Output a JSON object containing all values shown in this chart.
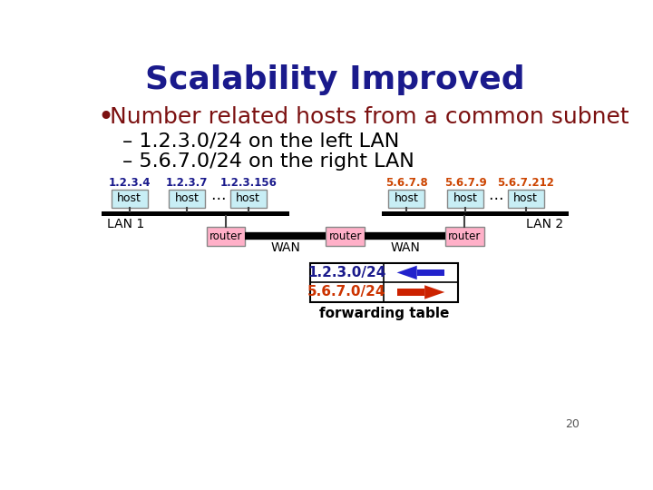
{
  "title": "Scalability Improved",
  "title_color": "#1a1a8c",
  "title_fontsize": 26,
  "bullet_text": "Number related hosts from a common subnet",
  "bullet_color": "#7b1010",
  "bullet_fontsize": 18,
  "sub1": "– 1.2.3.0/24 on the left LAN",
  "sub2": "– 5.6.7.0/24 on the right LAN",
  "sub_color": "#000000",
  "sub_fontsize": 16,
  "left_labels": [
    "1.2.3.4",
    "1.2.3.7",
    "1.2.3.156"
  ],
  "right_labels": [
    "5.6.7.8",
    "5.6.7.9",
    "5.6.7.212"
  ],
  "label_left_color": "#1a1a8c",
  "label_right_color": "#cc4400",
  "host_box_color": "#c8eef5",
  "router_box_color": "#ffb0c8",
  "lan_bar_color": "#000000",
  "wan_line_color": "#000000",
  "table_border_color": "#000000",
  "table_left_color": "#1a1a8c",
  "table_right_color": "#cc3300",
  "arrow_left_color": "#2222cc",
  "arrow_right_color": "#cc2200",
  "page_num": "20",
  "background_color": "#ffffff"
}
